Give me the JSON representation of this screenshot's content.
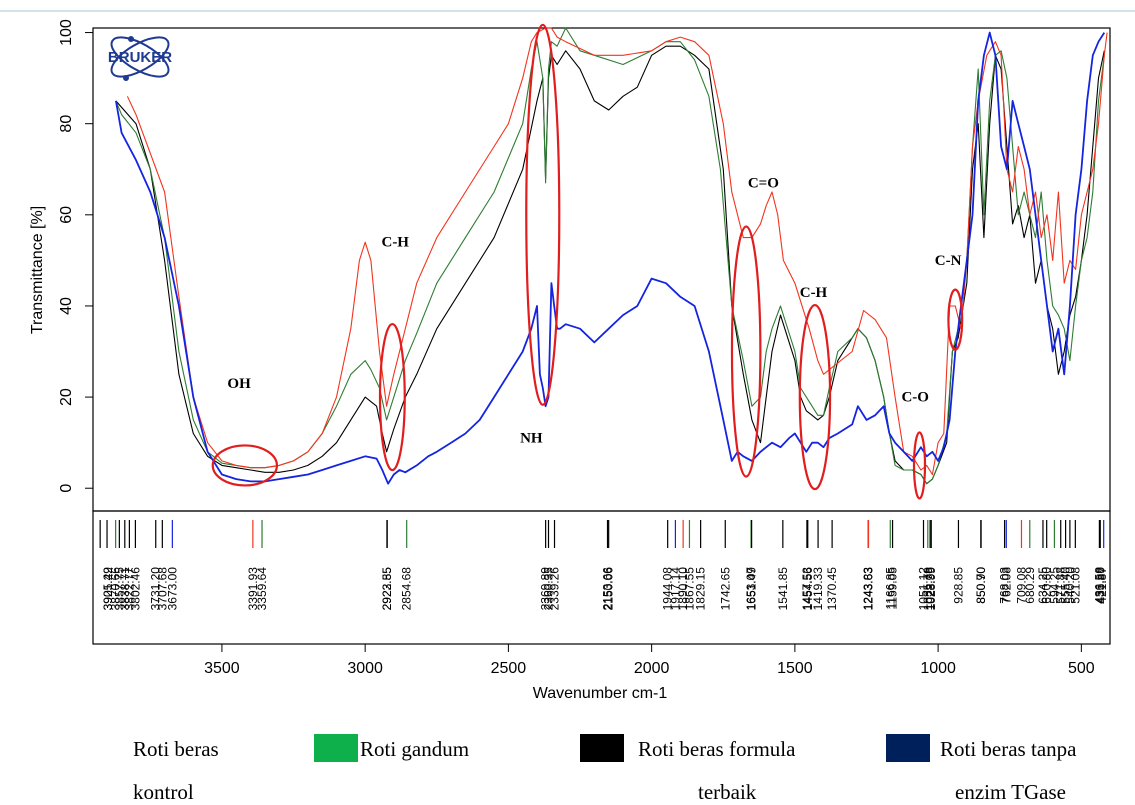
{
  "chart_data": {
    "type": "line",
    "logo_text": "BRUKER",
    "ylabel": "Transmittance [%]",
    "xlabel": "Wavenumber cm-1",
    "xlim": [
      3950,
      400
    ],
    "ylim": [
      -5,
      101
    ],
    "x_ticks": [
      3500,
      3000,
      2500,
      2000,
      1500,
      1000,
      500
    ],
    "y_ticks": [
      0,
      20,
      40,
      60,
      80,
      100
    ],
    "series": [
      {
        "name": "Roti beras kontrol",
        "color": "#f2341e",
        "x": [
          3830,
          3800,
          3700,
          3650,
          3600,
          3550,
          3500,
          3450,
          3400,
          3350,
          3300,
          3250,
          3200,
          3150,
          3100,
          3050,
          3020,
          3000,
          2980,
          2950,
          2925,
          2900,
          2860,
          2820,
          2750,
          2650,
          2550,
          2500,
          2450,
          2420,
          2400,
          2370,
          2350,
          2330,
          2300,
          2200,
          2100,
          2000,
          1950,
          1900,
          1850,
          1800,
          1750,
          1720,
          1680,
          1650,
          1620,
          1600,
          1580,
          1560,
          1540,
          1500,
          1450,
          1420,
          1400,
          1380,
          1300,
          1260,
          1220,
          1180,
          1150,
          1120,
          1090,
          1060,
          1040,
          1020,
          1000,
          980,
          960,
          940,
          920,
          900,
          880,
          860,
          830,
          800,
          780,
          760,
          740,
          720,
          700,
          680,
          660,
          640,
          620,
          600,
          580,
          560,
          540,
          520,
          500,
          480,
          460,
          440,
          420,
          410
        ],
        "y": [
          86,
          82,
          65,
          42,
          20,
          10,
          6,
          5,
          4.5,
          4.5,
          5,
          6,
          8,
          12,
          20,
          35,
          50,
          54,
          50,
          30,
          18,
          25,
          35,
          45,
          55,
          65,
          75,
          80,
          90,
          98,
          100,
          102,
          101,
          99,
          98,
          95,
          95,
          96,
          98,
          99,
          98,
          95,
          80,
          65,
          55,
          55,
          58,
          62,
          65,
          60,
          50,
          45,
          35,
          28,
          25,
          26,
          30,
          39,
          37,
          33,
          20,
          8,
          7,
          4,
          5,
          3,
          10,
          12,
          40,
          40,
          35,
          50,
          75,
          85,
          95,
          98,
          95,
          70,
          65,
          75,
          70,
          60,
          65,
          55,
          60,
          50,
          65,
          45,
          50,
          48,
          60,
          65,
          70,
          80,
          95,
          100
        ]
      },
      {
        "name": "Roti gandum",
        "color": "#2e7d32",
        "x": [
          3870,
          3850,
          3800,
          3750,
          3700,
          3650,
          3600,
          3550,
          3500,
          3450,
          3400,
          3350,
          3300,
          3250,
          3200,
          3150,
          3100,
          3050,
          3000,
          2980,
          2950,
          2925,
          2900,
          2860,
          2820,
          2750,
          2650,
          2550,
          2450,
          2420,
          2400,
          2380,
          2370,
          2360,
          2350,
          2330,
          2300,
          2250,
          2200,
          2100,
          2000,
          1950,
          1900,
          1850,
          1800,
          1760,
          1720,
          1680,
          1650,
          1620,
          1600,
          1580,
          1550,
          1500,
          1480,
          1460,
          1440,
          1420,
          1400,
          1380,
          1350,
          1300,
          1280,
          1250,
          1220,
          1190,
          1170,
          1150,
          1120,
          1090,
          1060,
          1040,
          1020,
          1000,
          970,
          950,
          930,
          900,
          880,
          860,
          840,
          820,
          800,
          780,
          760,
          740,
          720,
          700,
          680,
          660,
          640,
          620,
          600,
          580,
          560,
          540,
          520,
          500,
          480,
          460,
          440,
          420
        ],
        "y": [
          85,
          82,
          78,
          70,
          55,
          30,
          15,
          8,
          5.5,
          5,
          4.5,
          4.5,
          5,
          6,
          8,
          12,
          18,
          25,
          28,
          26,
          22,
          15,
          20,
          28,
          34,
          45,
          55,
          65,
          80,
          92,
          98,
          90,
          67,
          92,
          98,
          97,
          101,
          96,
          95,
          93,
          96,
          98,
          98,
          94,
          86,
          70,
          40,
          28,
          18,
          20,
          30,
          35,
          40,
          30,
          22,
          20,
          18,
          16,
          16,
          22,
          30,
          33,
          35,
          33,
          28,
          20,
          12,
          5,
          4,
          4,
          3,
          1,
          2,
          5,
          12,
          30,
          35,
          50,
          75,
          92,
          60,
          85,
          95,
          96,
          90,
          75,
          60,
          65,
          60,
          55,
          65,
          50,
          40,
          38,
          35,
          28,
          40,
          50,
          55,
          65,
          85,
          95
        ]
      },
      {
        "name": "Roti beras formula terbaik",
        "color": "#000000",
        "x": [
          3870,
          3800,
          3750,
          3700,
          3650,
          3600,
          3550,
          3500,
          3450,
          3400,
          3350,
          3300,
          3250,
          3200,
          3150,
          3100,
          3050,
          3000,
          2960,
          2940,
          2925,
          2900,
          2860,
          2820,
          2750,
          2650,
          2550,
          2450,
          2400,
          2380,
          2370,
          2360,
          2350,
          2330,
          2300,
          2250,
          2200,
          2150,
          2100,
          2050,
          2000,
          1950,
          1900,
          1850,
          1800,
          1750,
          1720,
          1680,
          1650,
          1620,
          1600,
          1580,
          1550,
          1500,
          1480,
          1460,
          1440,
          1420,
          1400,
          1380,
          1350,
          1300,
          1280,
          1250,
          1220,
          1190,
          1170,
          1150,
          1120,
          1090,
          1060,
          1040,
          1020,
          1000,
          970,
          950,
          930,
          900,
          880,
          860,
          840,
          820,
          800,
          780,
          760,
          740,
          720,
          700,
          680,
          660,
          640,
          620,
          600,
          580,
          560,
          540,
          520,
          500,
          480,
          460,
          440,
          420
        ],
        "y": [
          85,
          80,
          70,
          50,
          25,
          12,
          7,
          5,
          4.5,
          4,
          3.5,
          3.5,
          4,
          5,
          7,
          10,
          15,
          20,
          18,
          12,
          8,
          13,
          20,
          25,
          35,
          45,
          55,
          70,
          85,
          90,
          68,
          90,
          95,
          93,
          96,
          92,
          85,
          83,
          86,
          88,
          95,
          97,
          97,
          95,
          92,
          70,
          40,
          25,
          15,
          10,
          20,
          30,
          38,
          28,
          20,
          17,
          16,
          15,
          16,
          20,
          28,
          33,
          35,
          33,
          28,
          20,
          12,
          6,
          4,
          4,
          3,
          1,
          2,
          5,
          10,
          30,
          33,
          45,
          70,
          80,
          55,
          80,
          95,
          92,
          75,
          58,
          62,
          55,
          60,
          45,
          50,
          40,
          35,
          25,
          30,
          38,
          42,
          50,
          60,
          75,
          90,
          96
        ]
      },
      {
        "name": "Roti beras tanpa enzim TGase",
        "color": "#1424e0",
        "x": [
          3870,
          3850,
          3800,
          3750,
          3700,
          3650,
          3600,
          3550,
          3500,
          3450,
          3400,
          3350,
          3300,
          3250,
          3200,
          3150,
          3100,
          3050,
          3000,
          2960,
          2940,
          2920,
          2900,
          2880,
          2860,
          2820,
          2780,
          2750,
          2700,
          2650,
          2600,
          2550,
          2500,
          2450,
          2420,
          2400,
          2390,
          2380,
          2370,
          2360,
          2350,
          2340,
          2330,
          2320,
          2300,
          2250,
          2200,
          2150,
          2100,
          2050,
          2000,
          1950,
          1900,
          1850,
          1800,
          1750,
          1720,
          1700,
          1680,
          1650,
          1620,
          1600,
          1580,
          1550,
          1520,
          1500,
          1480,
          1460,
          1440,
          1420,
          1400,
          1380,
          1350,
          1300,
          1280,
          1250,
          1220,
          1190,
          1170,
          1150,
          1120,
          1090,
          1060,
          1040,
          1020,
          1000,
          980,
          960,
          940,
          920,
          900,
          880,
          860,
          840,
          820,
          800,
          780,
          760,
          740,
          720,
          700,
          680,
          660,
          640,
          620,
          600,
          580,
          560,
          540,
          520,
          500,
          480,
          460,
          440,
          420
        ],
        "y": [
          85,
          78,
          72,
          65,
          55,
          40,
          20,
          8,
          3,
          2,
          1.5,
          1.5,
          2,
          2.5,
          3,
          4,
          5,
          6,
          7,
          6.5,
          4,
          1,
          3,
          4,
          3.5,
          5,
          7,
          8,
          10,
          12,
          15,
          20,
          25,
          30,
          35,
          40,
          25,
          22,
          18,
          20,
          45,
          40,
          35,
          35,
          36,
          35,
          32,
          35,
          38,
          40,
          46,
          45,
          42,
          40,
          30,
          15,
          6,
          8,
          7,
          6,
          8,
          9,
          10,
          9,
          11,
          12,
          10,
          8,
          10,
          10,
          9,
          11,
          12,
          14,
          18,
          15,
          16,
          18,
          12,
          10,
          8,
          6,
          9,
          7,
          8,
          6,
          9,
          15,
          30,
          40,
          50,
          60,
          85,
          95,
          100,
          95,
          75,
          70,
          85,
          80,
          75,
          70,
          60,
          50,
          40,
          30,
          35,
          25,
          40,
          60,
          70,
          85,
          95,
          98,
          100
        ]
      }
    ],
    "peak_labels": [
      "3925.49",
      "3901.22",
      "3870.66",
      "3857.75",
      "3838.71",
      "3822.77",
      "3802.46",
      "3731.20",
      "3707.68",
      "3673.00",
      "3391.93",
      "3359.64",
      "2922.55",
      "2923.85",
      "2854.68",
      "2369.89",
      "2360.35",
      "2339.26",
      "2153.66",
      "2150.06",
      "1944.08",
      "1917.14",
      "1890.10",
      "1867.55",
      "1829.15",
      "1742.65",
      "1653.07",
      "1651.49",
      "1541.85",
      "1457.53",
      "1454.56",
      "1419.33",
      "1370.45",
      "1243.83",
      "1243.63",
      "1166.85",
      "1159.05",
      "1051.12",
      "1035.79",
      "1028.36",
      "1023.99",
      "928.85",
      "850.90",
      "850.70",
      "768.03",
      "762.08",
      "709.08",
      "680.29",
      "634.25",
      "620.80",
      "594.25",
      "571.88",
      "555.40",
      "540.20",
      "521.08",
      "436.58",
      "433.89",
      "421.87"
    ],
    "peak_marker_positions": [
      3925,
      3901,
      3871,
      3858,
      3839,
      3823,
      3802,
      3731,
      3708,
      3673,
      3392,
      3360,
      2923,
      2924,
      2855,
      2370,
      2360,
      2339,
      2154,
      2150,
      1944,
      1917,
      1890,
      1868,
      1829,
      1743,
      1653,
      1651,
      1542,
      1458,
      1455,
      1419,
      1370,
      1244,
      1243,
      1167,
      1159,
      1051,
      1036,
      1028,
      1024,
      929,
      851,
      850,
      768,
      762,
      709,
      680,
      634,
      621,
      594,
      572,
      555,
      540,
      521,
      437,
      434,
      422
    ],
    "annotations": [
      {
        "label": "OH",
        "x": 3440,
        "y": 22
      },
      {
        "label": "C-H",
        "x": 2895,
        "y": 53
      },
      {
        "label": "NH",
        "x": 2420,
        "y": 10
      },
      {
        "label": "C=O",
        "x": 1610,
        "y": 66
      },
      {
        "label": "C-H",
        "x": 1435,
        "y": 42
      },
      {
        "label": "C-O",
        "x": 1080,
        "y": 19
      },
      {
        "label": "C-N",
        "x": 965,
        "y": 49
      }
    ]
  },
  "legend": [
    {
      "text_line1": "Roti beras",
      "text_line2": "kontrol",
      "swatch": ""
    },
    {
      "text_line1": "Roti gandum",
      "text_line2": "",
      "swatch": "#0db04b"
    },
    {
      "text_line1": "Roti beras formula",
      "text_line2": "terbaik",
      "swatch": "#000000"
    },
    {
      "text_line1": "Roti beras tanpa",
      "text_line2": "enzim TGase",
      "swatch": "#00205b"
    }
  ]
}
